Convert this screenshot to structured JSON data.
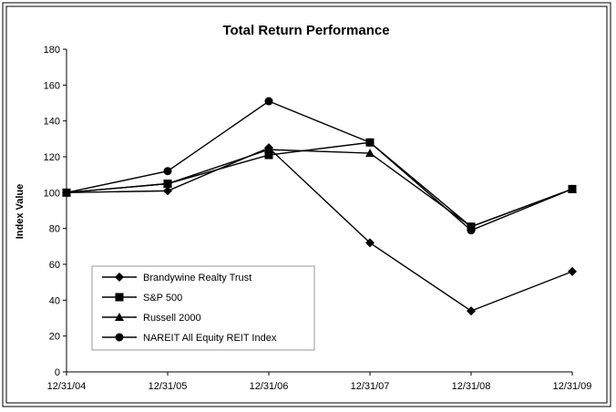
{
  "chart_data": {
    "type": "line",
    "title": "Total Return Performance",
    "xlabel": "",
    "ylabel": "Index Value",
    "categories": [
      "12/31/04",
      "12/31/05",
      "12/31/06",
      "12/31/07",
      "12/31/08",
      "12/31/09"
    ],
    "yticks": [
      "0",
      "20",
      "40",
      "60",
      "80",
      "100",
      "120",
      "140",
      "160",
      "180"
    ],
    "ylim": [
      0,
      180
    ],
    "grid": false,
    "legend_position": "bottom-left",
    "series": [
      {
        "name": "Brandywine Realty Trust",
        "marker": "diamond",
        "values": [
          100,
          101,
          125,
          72,
          34,
          56
        ]
      },
      {
        "name": "S&P 500",
        "marker": "square",
        "values": [
          100,
          105,
          121,
          128,
          81,
          102
        ]
      },
      {
        "name": "Russell 2000",
        "marker": "triangle",
        "values": [
          100,
          105,
          124,
          122,
          81,
          102
        ]
      },
      {
        "name": "NAREIT All Equity REIT Index",
        "marker": "circle",
        "values": [
          100,
          112,
          151,
          128,
          79,
          102
        ]
      }
    ],
    "colors": {
      "line": "#000000",
      "background": "#ffffff"
    }
  }
}
